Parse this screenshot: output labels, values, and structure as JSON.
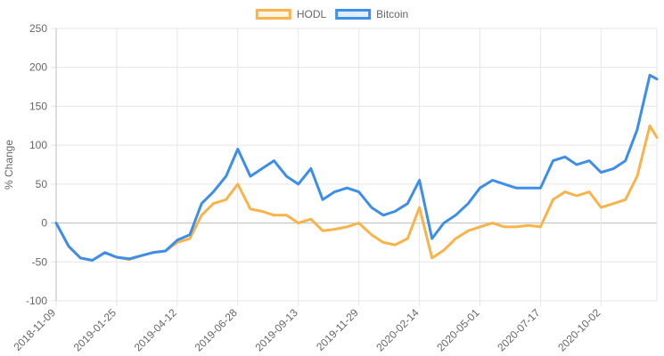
{
  "chart_data": {
    "type": "line",
    "ylabel": "% Change",
    "xlabel": "",
    "title": "",
    "ylim": [
      -100,
      250
    ],
    "yticks": [
      250,
      200,
      150,
      100,
      50,
      0,
      -50,
      -100
    ],
    "x_tick_labels": [
      "2018-11-09",
      "2019-01-25",
      "2019-04-12",
      "2019-06-28",
      "2019-09-13",
      "2019-11-29",
      "2020-02-14",
      "2020-05-01",
      "2020-07-17",
      "2020-10-02"
    ],
    "grid": true,
    "legend_position": "top-center",
    "x": [
      "2018-11-09",
      "2018-11-25",
      "2018-12-10",
      "2018-12-25",
      "2019-01-10",
      "2019-01-25",
      "2019-02-10",
      "2019-02-25",
      "2019-03-12",
      "2019-03-28",
      "2019-04-12",
      "2019-04-28",
      "2019-05-13",
      "2019-05-28",
      "2019-06-13",
      "2019-06-28",
      "2019-07-14",
      "2019-07-29",
      "2019-08-13",
      "2019-08-29",
      "2019-09-13",
      "2019-09-29",
      "2019-10-14",
      "2019-10-29",
      "2019-11-14",
      "2019-11-29",
      "2019-12-15",
      "2019-12-30",
      "2020-01-14",
      "2020-01-30",
      "2020-02-14",
      "2020-03-01",
      "2020-03-16",
      "2020-03-31",
      "2020-04-16",
      "2020-05-01",
      "2020-05-17",
      "2020-06-01",
      "2020-06-16",
      "2020-07-02",
      "2020-07-17",
      "2020-08-02",
      "2020-08-17",
      "2020-09-01",
      "2020-09-17",
      "2020-10-02",
      "2020-10-18",
      "2020-11-02",
      "2020-11-17",
      "2020-12-03",
      "2020-12-12"
    ],
    "series": [
      {
        "name": "HODL",
        "color": "#f8b44a",
        "values": [
          0,
          -30,
          -45,
          -48,
          -38,
          -44,
          -47,
          -42,
          -38,
          -36,
          -25,
          -20,
          10,
          25,
          30,
          50,
          18,
          15,
          10,
          10,
          0,
          5,
          -10,
          -8,
          -5,
          0,
          -15,
          -25,
          -28,
          -20,
          20,
          -45,
          -35,
          -20,
          -10,
          -5,
          0,
          -5,
          -5,
          -3,
          -5,
          30,
          40,
          35,
          40,
          20,
          25,
          30,
          60,
          125,
          110
        ]
      },
      {
        "name": "Bitcoin",
        "color": "#3d8ee8",
        "values": [
          0,
          -30,
          -45,
          -48,
          -38,
          -44,
          -46,
          -42,
          -38,
          -36,
          -22,
          -15,
          25,
          40,
          60,
          95,
          60,
          70,
          80,
          60,
          50,
          70,
          30,
          40,
          45,
          40,
          20,
          10,
          15,
          25,
          55,
          -20,
          0,
          10,
          25,
          45,
          55,
          50,
          45,
          45,
          45,
          80,
          85,
          75,
          80,
          65,
          70,
          80,
          120,
          190,
          185
        ]
      }
    ]
  }
}
